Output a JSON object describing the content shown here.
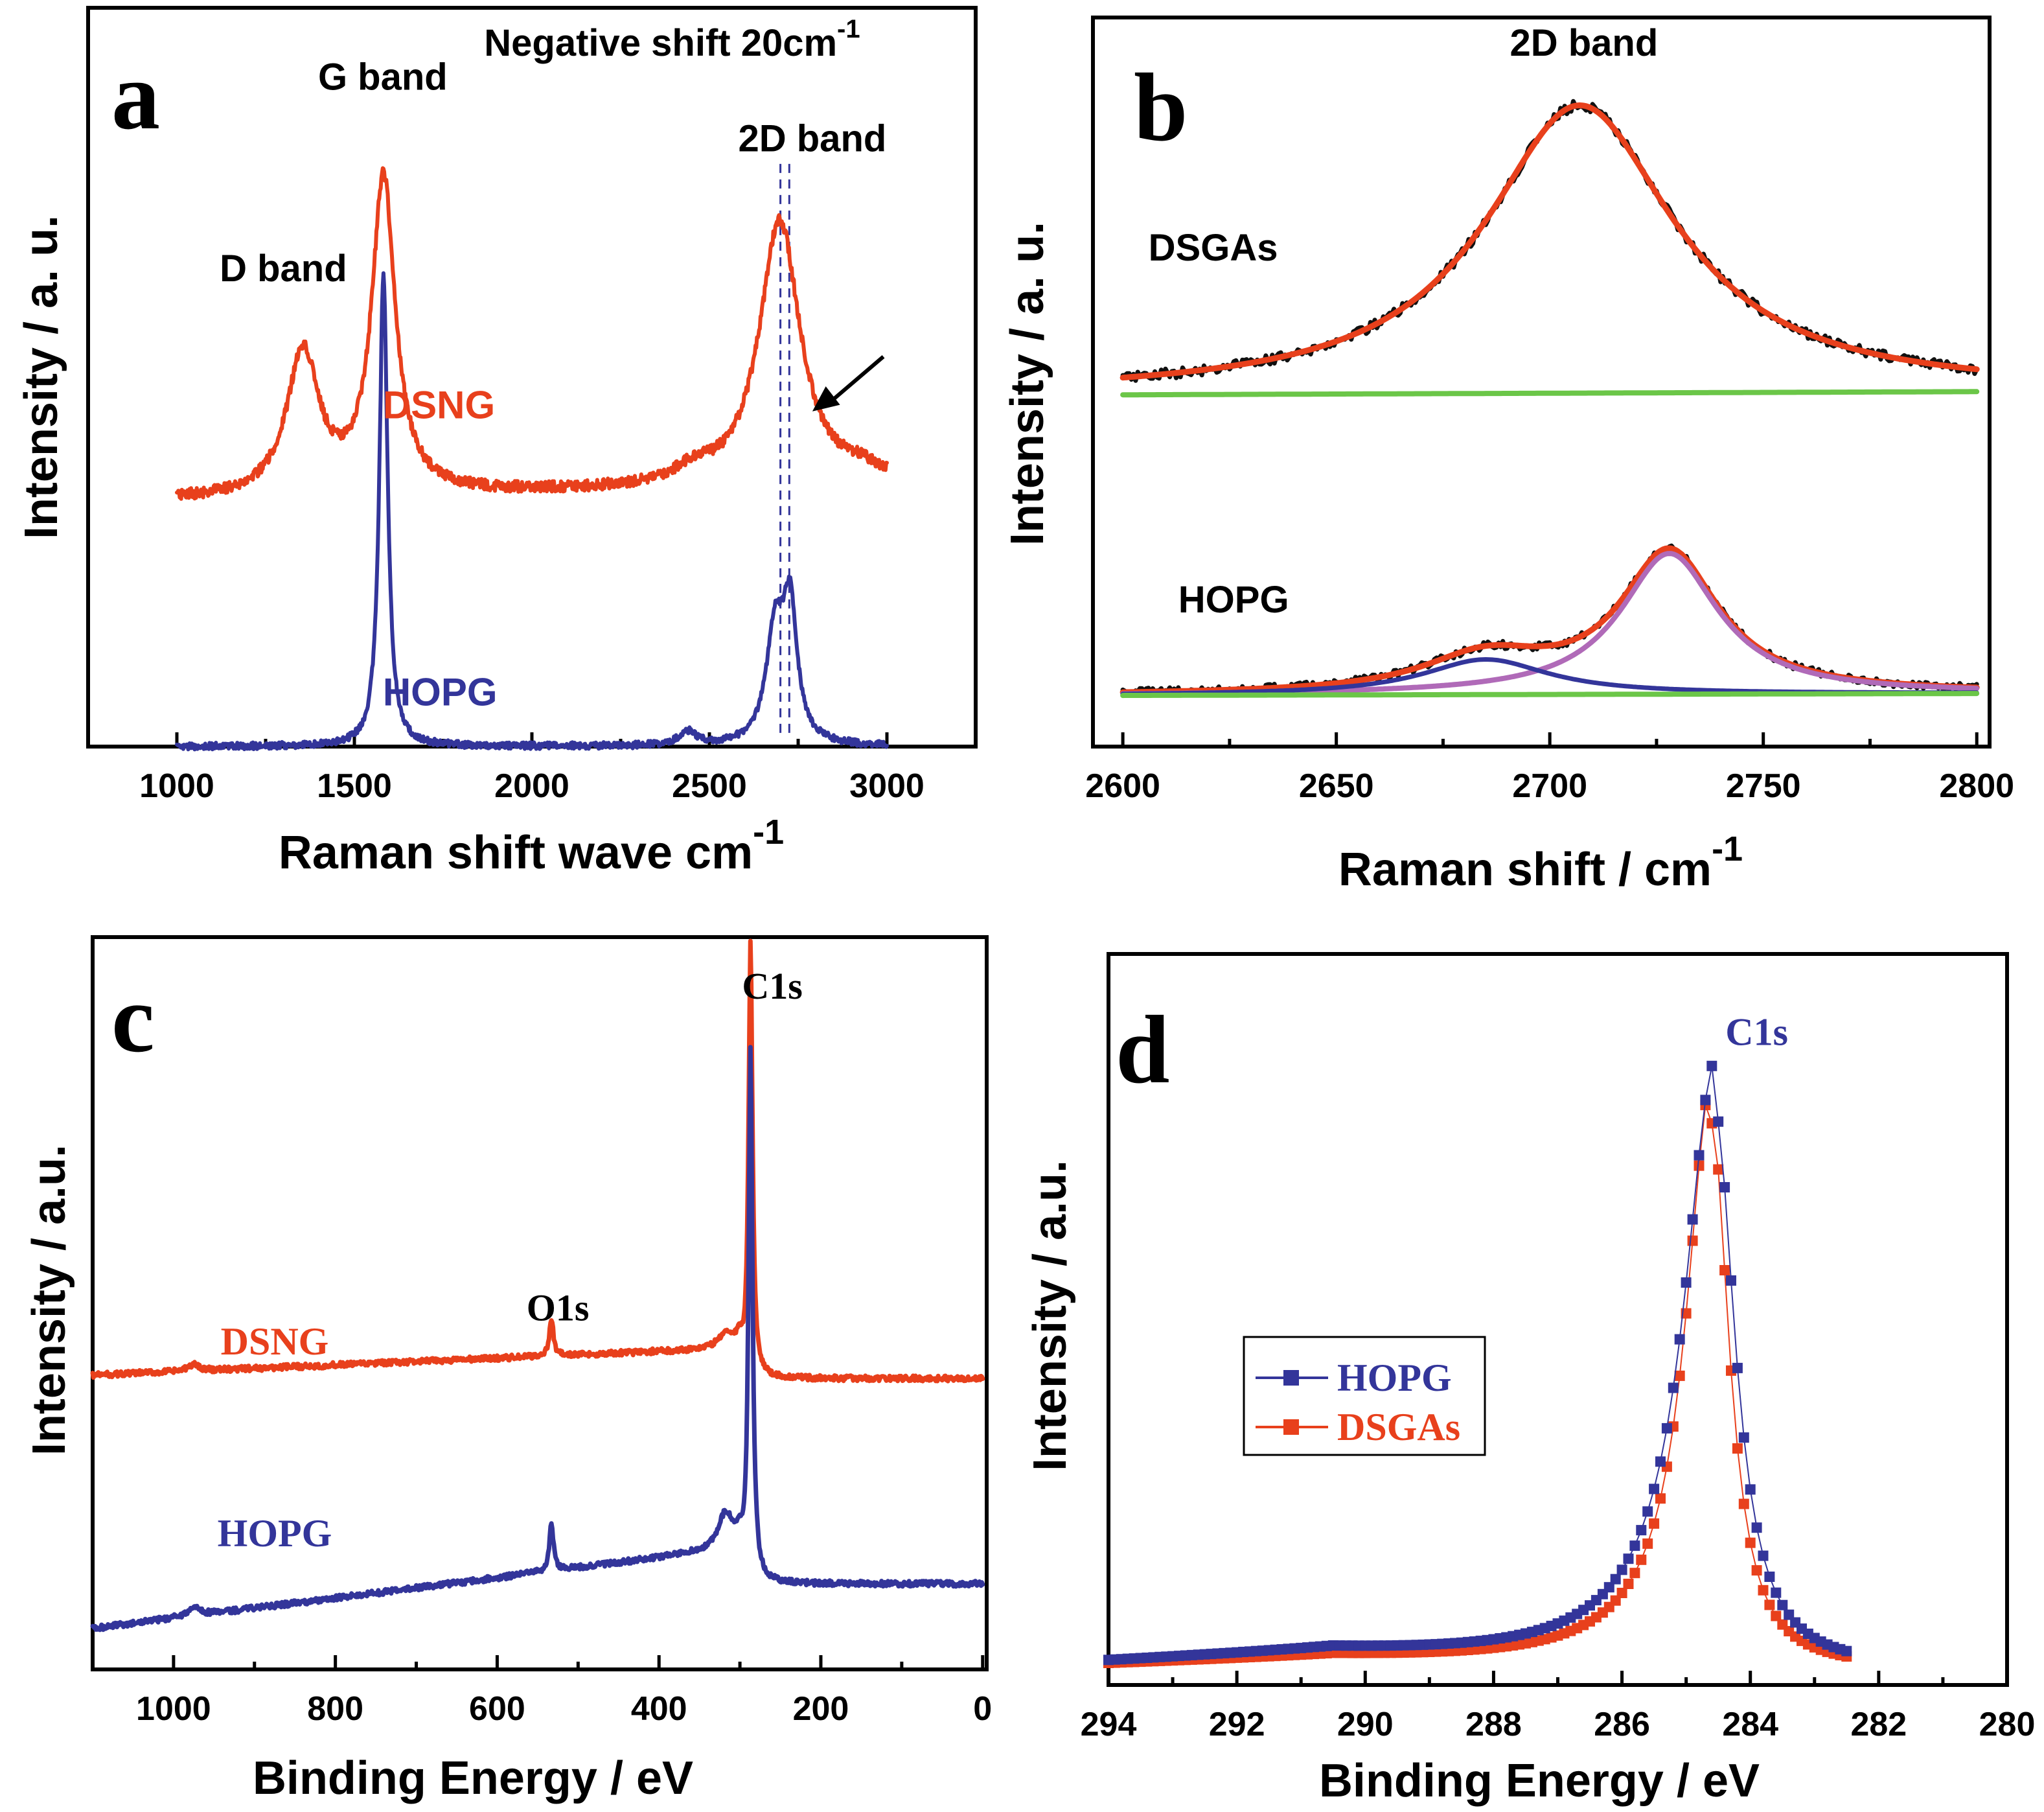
{
  "colors": {
    "red": "#e8401c",
    "blue": "#33359a",
    "black": "#111111",
    "green": "#6bc648",
    "purple": "#b06ab8"
  },
  "chart_data": [
    {
      "id": "a",
      "type": "line",
      "panel_label": "a",
      "title": "",
      "xlabel": "Raman shift wave cm",
      "xlabel_sup": "-1",
      "ylabel": "Intensity / a. u.",
      "xlim": [
        750,
        3250
      ],
      "ylim": [
        0,
        1.08
      ],
      "xticks": [
        1000,
        1500,
        2000,
        2500,
        3000
      ],
      "xtick_labels": [
        "1000",
        "1500",
        "2000",
        "2500",
        "3000"
      ],
      "x_range": [
        1000,
        3000
      ],
      "series": [
        {
          "name": "DSNG",
          "color_key": "red",
          "offset": 0.36,
          "noise": 0.008,
          "base_start": 0.0,
          "base_end": 0.02,
          "peaks": [
            {
              "center": 1355,
              "height": 0.21,
              "width": 55
            },
            {
              "center": 1582,
              "height": 0.46,
              "width": 40
            },
            {
              "center": 2455,
              "height": 0.02,
              "width": 60
            },
            {
              "center": 2698,
              "height": 0.39,
              "width": 70
            },
            {
              "center": 2930,
              "height": 0.015,
              "width": 60
            }
          ]
        },
        {
          "name": "HOPG",
          "color_key": "blue",
          "offset": 0.0,
          "noise": 0.005,
          "base_start": 0.0,
          "base_end": 0.0,
          "peaks": [
            {
              "center": 1582,
              "height": 0.69,
              "width": 14
            },
            {
              "center": 2440,
              "height": 0.02,
              "width": 30
            },
            {
              "center": 2685,
              "height": 0.16,
              "width": 30
            },
            {
              "center": 2727,
              "height": 0.19,
              "width": 24
            }
          ]
        }
      ],
      "annotations": [
        {
          "text": "D band",
          "x": 1300,
          "y": 0.68,
          "anchor": "middle"
        },
        {
          "text": "G band",
          "x": 1580,
          "y": 0.96,
          "anchor": "middle"
        },
        {
          "text": "2D band",
          "x": 2790,
          "y": 0.87,
          "anchor": "middle"
        },
        {
          "text": "Negative shift 20cm",
          "sup": "-1",
          "x": 2395,
          "y": 1.01,
          "anchor": "middle"
        },
        {
          "text": "DSNG",
          "x": 1580,
          "y": 0.48,
          "anchor": "start",
          "color_key": "red"
        },
        {
          "text": "HOPG",
          "x": 1580,
          "y": 0.06,
          "anchor": "start",
          "color_key": "blue"
        }
      ],
      "vlines": [
        2700,
        2725
      ],
      "arrow": {
        "from": [
          2990,
          0.57
        ],
        "to": [
          2790,
          0.49
        ]
      }
    },
    {
      "id": "b",
      "type": "line",
      "panel_label": "b",
      "title": "",
      "xlabel": "Raman shift / cm",
      "xlabel_sup": "-1",
      "ylabel": "Intensity / a. u.",
      "xlim": [
        2593,
        2803
      ],
      "ylim": [
        -0.08,
        1.06
      ],
      "xticks": [
        2600,
        2650,
        2700,
        2750,
        2800
      ],
      "xtick_labels": [
        "2600",
        "2650",
        "2700",
        "2750",
        "2800"
      ],
      "x_range": [
        2600,
        2800
      ],
      "series": [
        {
          "name": "DSGAs data",
          "color_key": "black",
          "style": "noisy",
          "offset": 0.47,
          "noise": 0.008,
          "base_start": 0.0,
          "base_end": 0.005,
          "peaks": [
            {
              "center": 2707,
              "height": 0.45,
              "width": 27
            }
          ]
        },
        {
          "name": "DSGAs fit",
          "color_key": "red",
          "offset": 0.47,
          "noise": 0,
          "base_start": 0.0,
          "base_end": 0.005,
          "peaks": [
            {
              "center": 2707,
              "height": 0.45,
              "width": 27
            }
          ]
        },
        {
          "name": "DSGAs baseline",
          "color_key": "green",
          "offset": 0.47,
          "noise": 0,
          "base_start": 0.0,
          "base_end": 0.005,
          "peaks": []
        },
        {
          "name": "HOPG data",
          "color_key": "black",
          "style": "noisy",
          "offset": 0.0,
          "noise": 0.006,
          "base_start": 0.0,
          "base_end": 0.003,
          "peaks": [
            {
              "center": 2685,
              "height": 0.055,
              "width": 18
            },
            {
              "center": 2728,
              "height": 0.22,
              "width": 14
            }
          ]
        },
        {
          "name": "HOPG fit",
          "color_key": "red",
          "offset": 0.0,
          "noise": 0,
          "base_start": 0.0,
          "base_end": 0.003,
          "peaks": [
            {
              "center": 2685,
              "height": 0.055,
              "width": 18
            },
            {
              "center": 2728,
              "height": 0.22,
              "width": 14
            }
          ]
        },
        {
          "name": "HOPG component 2728",
          "color_key": "purple",
          "offset": 0.0,
          "noise": 0,
          "base_start": 0.0,
          "base_end": 0.003,
          "peaks": [
            {
              "center": 2728,
              "height": 0.22,
              "width": 14
            }
          ]
        },
        {
          "name": "HOPG component 2685",
          "color_key": "blue",
          "offset": 0.0,
          "noise": 0,
          "base_start": 0.0,
          "base_end": 0.003,
          "peaks": [
            {
              "center": 2685,
              "height": 0.055,
              "width": 18
            }
          ]
        },
        {
          "name": "HOPG baseline",
          "color_key": "green",
          "offset": 0.0,
          "noise": 0,
          "base_start": 0.0,
          "base_end": 0.003,
          "peaks": []
        }
      ],
      "annotations": [
        {
          "text": "2D band",
          "x": 2708,
          "y": 1.0,
          "anchor": "middle"
        },
        {
          "text": "DSGAs",
          "x": 2606,
          "y": 0.68,
          "anchor": "start"
        },
        {
          "text": "HOPG",
          "x": 2613,
          "y": 0.13,
          "anchor": "start"
        }
      ]
    },
    {
      "id": "c",
      "type": "line",
      "panel_label": "c",
      "title": "",
      "xlabel": "Binding Energy / eV",
      "ylabel": "Intensity / a.u.",
      "xlim": [
        1100,
        -5
      ],
      "ylim": [
        0,
        1.07
      ],
      "xticks": [
        1000,
        800,
        600,
        400,
        200,
        0
      ],
      "xtick_labels": [
        "1000",
        "800",
        "600",
        "400",
        "200",
        "0"
      ],
      "x_range": [
        1100,
        0
      ],
      "series": [
        {
          "name": "DSNG",
          "color_key": "red",
          "offset": 0.43,
          "noise": 0.004,
          "style": "xps",
          "base_start": 0.0,
          "base_end": 0.04,
          "shelf": 0.34,
          "drop": -0.14,
          "post": -0.045,
          "peaks": [
            {
              "center": 975,
              "height": 0.01,
              "width": 8
            },
            {
              "center": 533,
              "height": 0.055,
              "width": 3
            },
            {
              "center": 318,
              "height": 0.02,
              "width": 10
            },
            {
              "center": 287,
              "height": 0.64,
              "width": 3
            }
          ]
        },
        {
          "name": "HOPG",
          "color_key": "blue",
          "offset": 0.06,
          "noise": 0.004,
          "style": "xps",
          "base_start": 0.0,
          "base_end": 0.12,
          "shelf": 0.34,
          "drop": -0.17,
          "post": -0.055,
          "peaks": [
            {
              "center": 975,
              "height": 0.015,
              "width": 8
            },
            {
              "center": 533,
              "height": 0.07,
              "width": 3
            },
            {
              "center": 318,
              "height": 0.05,
              "width": 10
            },
            {
              "center": 287,
              "height": 0.78,
              "width": 3
            }
          ]
        }
      ],
      "annotations": [
        {
          "text": "C1s",
          "x": 260,
          "y": 0.98,
          "anchor": "middle"
        },
        {
          "text": "O1s",
          "x": 525,
          "y": 0.51,
          "anchor": "middle"
        },
        {
          "text": "DSNG",
          "x": 875,
          "y": 0.46,
          "anchor": "middle",
          "color_key": "red"
        },
        {
          "text": "HOPG",
          "x": 875,
          "y": 0.18,
          "anchor": "middle",
          "color_key": "blue"
        }
      ]
    },
    {
      "id": "d",
      "type": "scatter",
      "panel_label": "d",
      "title": "",
      "xlabel": "Binding Energy / eV",
      "ylabel": "Intensity / a.u.",
      "xlim": [
        294,
        280
      ],
      "ylim": [
        -0.015,
        1.27
      ],
      "xticks": [
        294,
        292,
        290,
        288,
        286,
        284,
        282,
        280
      ],
      "xtick_labels": [
        "294",
        "292",
        "290",
        "288",
        "286",
        "284",
        "282",
        "280"
      ],
      "x_range": [
        294,
        282.5
      ],
      "step": 0.1,
      "series": [
        {
          "name": "DSGAs",
          "color_key": "red",
          "center": 284.6,
          "height": 0.96,
          "left_width": 0.48,
          "right_width": 0.33,
          "tail": 0.022,
          "shoulder": 0.22
        },
        {
          "name": "HOPG",
          "color_key": "blue",
          "center": 284.55,
          "height": 0.98,
          "left_width": 0.58,
          "right_width": 0.38,
          "tail": 0.032,
          "shoulder": 0.26
        }
      ],
      "legend": {
        "position": "center-left",
        "items": [
          "HOPG",
          "DSGAs"
        ],
        "item_color_keys": [
          "blue",
          "red"
        ]
      },
      "annotations": [
        {
          "text": "C1s",
          "x": 283.9,
          "y": 1.11,
          "anchor": "middle",
          "color_key": "blue"
        }
      ]
    }
  ]
}
